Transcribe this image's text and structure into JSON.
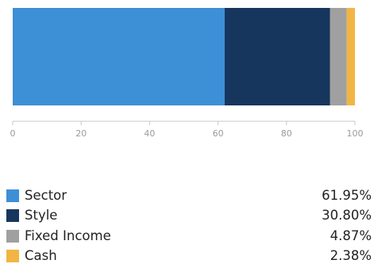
{
  "chart_data": {
    "type": "bar",
    "orientation": "horizontal",
    "stacked": true,
    "categories": [
      ""
    ],
    "series": [
      {
        "name": "Sector",
        "values": [
          61.95
        ],
        "color": "#3d8fd6"
      },
      {
        "name": "Style",
        "values": [
          30.8
        ],
        "color": "#17365d"
      },
      {
        "name": "Fixed Income",
        "values": [
          4.87
        ],
        "color": "#a0a0a0"
      },
      {
        "name": "Cash",
        "values": [
          2.38
        ],
        "color": "#f2b544"
      }
    ],
    "xlim": [
      0,
      100
    ],
    "xticks": [
      0,
      20,
      40,
      60,
      80,
      100
    ],
    "grid": false,
    "legend_position": "bottom"
  },
  "legend": [
    {
      "label": "Sector",
      "value": "61.95%",
      "color": "#3d8fd6"
    },
    {
      "label": "Style",
      "value": "30.80%",
      "color": "#17365d"
    },
    {
      "label": "Fixed Income",
      "value": "4.87%",
      "color": "#a0a0a0"
    },
    {
      "label": "Cash",
      "value": "2.38%",
      "color": "#f2b544"
    }
  ],
  "colors": {
    "axis": "#c8c8c8",
    "tick_label": "#9a9a9a",
    "text": "#222222"
  }
}
